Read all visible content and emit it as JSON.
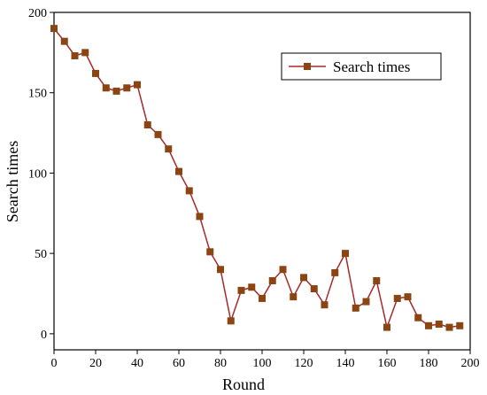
{
  "chart_data": {
    "type": "line",
    "x_label": "Round",
    "y_label": "Search times",
    "x": [
      0,
      5,
      10,
      15,
      20,
      25,
      30,
      35,
      40,
      45,
      50,
      55,
      60,
      65,
      70,
      75,
      80,
      85,
      90,
      95,
      100,
      105,
      110,
      115,
      120,
      125,
      130,
      135,
      140,
      145,
      150,
      155,
      160,
      165,
      170,
      175,
      180,
      185,
      190,
      195
    ],
    "series": [
      {
        "name": "Search times",
        "color": "#a52a2a",
        "marker_color": "#8b4513",
        "values": [
          190,
          182,
          173,
          175,
          162,
          153,
          151,
          153,
          155,
          130,
          124,
          115,
          101,
          89,
          73,
          51,
          40,
          8,
          27,
          29,
          22,
          33,
          40,
          23,
          35,
          28,
          18,
          38,
          50,
          16,
          20,
          33,
          4,
          22,
          23,
          10,
          5,
          6,
          4,
          5
        ]
      }
    ],
    "xlim": [
      0,
      200
    ],
    "xticks": [
      0,
      20,
      40,
      60,
      80,
      100,
      120,
      140,
      160,
      180,
      200
    ],
    "ylim": [
      -10,
      200
    ],
    "yticks": [
      0,
      50,
      100,
      150,
      200
    ],
    "legend": "upper-right",
    "grid": false
  }
}
